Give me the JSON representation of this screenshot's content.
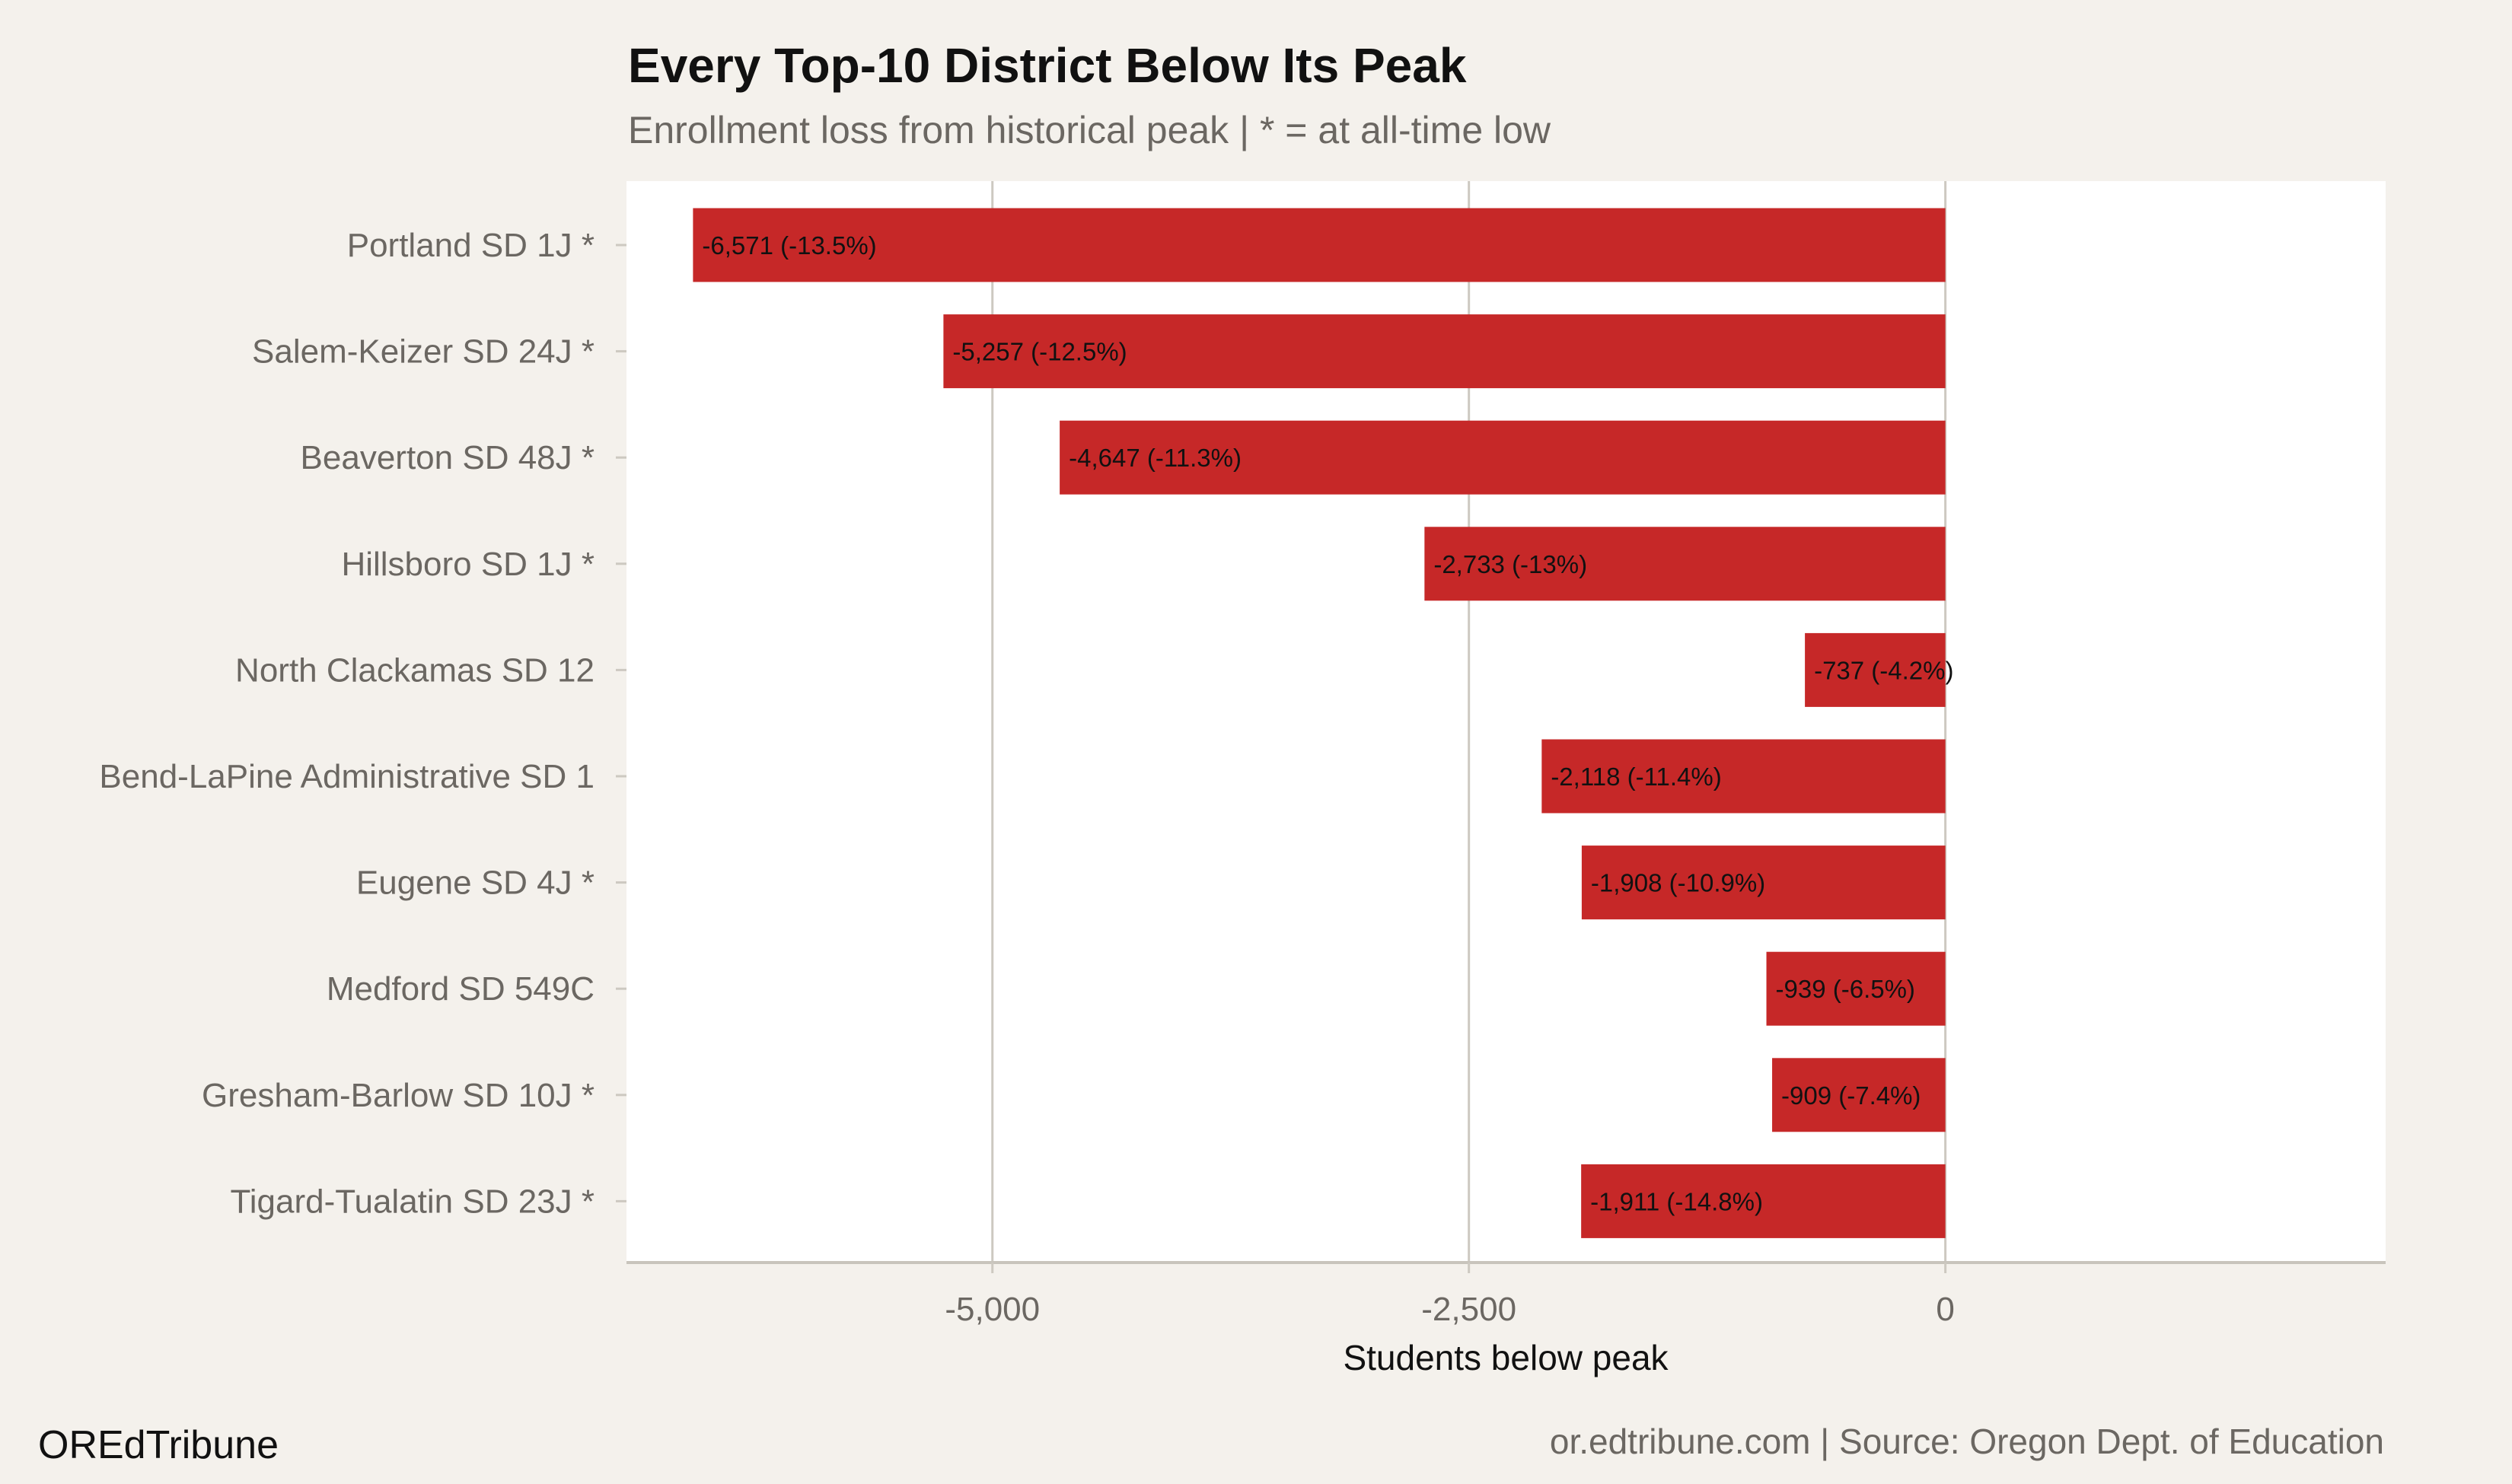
{
  "chart_data": {
    "type": "bar",
    "orientation": "horizontal",
    "title": "Every Top-10 District Below Its Peak",
    "subtitle": "Enrollment loss from historical peak | * = at all-time low",
    "xlabel": "Students below peak",
    "ylabel": "",
    "xlim": [
      -6920,
      2310
    ],
    "xticks": [
      -5000,
      -2500,
      0
    ],
    "xtick_labels": [
      "-5,000",
      "-2,500",
      "0"
    ],
    "grid": "vertical major",
    "bar_color": "#c62828",
    "categories": [
      "Portland SD 1J *",
      "Salem-Keizer SD 24J *",
      "Beaverton SD 48J *",
      "Hillsboro SD 1J *",
      "North Clackamas SD 12",
      "Bend-LaPine Administrative SD 1",
      "Eugene SD 4J *",
      "Medford SD 549C",
      "Gresham-Barlow SD 10J *",
      "Tigard-Tualatin SD 23J *"
    ],
    "values": [
      -6571,
      -5257,
      -4647,
      -2733,
      -737,
      -2118,
      -1908,
      -939,
      -909,
      -1911
    ],
    "labels": [
      "-6,571 (-13.5%)",
      "-5,257 (-12.5%)",
      "-4,647 (-11.3%)",
      "-2,733 (-13%)",
      "-737 (-4.2%)",
      "-2,118 (-11.4%)",
      "-1,908 (-10.9%)",
      "-939 (-6.5%)",
      "-909 (-7.4%)",
      "-1,911 (-14.8%)"
    ]
  },
  "footer": {
    "brand": "OREdTribune",
    "source": "or.edtribune.com | Source: Oregon Dept. of Education"
  }
}
